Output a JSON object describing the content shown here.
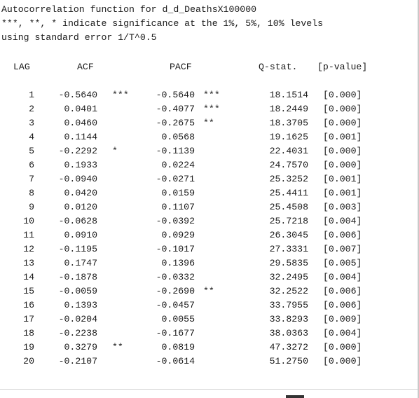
{
  "header": {
    "line1": "Autocorrelation function for d_d_DeathsX100000",
    "line2": "***, **, * indicate significance at the 1%, 5%, 10% levels",
    "line3": "using standard error 1/T^0.5"
  },
  "columns": {
    "lag": "LAG",
    "acf": "ACF",
    "pacf": "PACF",
    "q": "Q-stat.",
    "p": "[p-value]"
  },
  "rows": [
    {
      "lag": "1",
      "acf": "-0.5640",
      "acf_sig": "***",
      "pacf": "-0.5640",
      "pacf_sig": "***",
      "q": "18.1514",
      "p": "[0.000]"
    },
    {
      "lag": "2",
      "acf": "0.0401",
      "acf_sig": "",
      "pacf": "-0.4077",
      "pacf_sig": "***",
      "q": "18.2449",
      "p": "[0.000]"
    },
    {
      "lag": "3",
      "acf": "0.0460",
      "acf_sig": "",
      "pacf": "-0.2675",
      "pacf_sig": "**",
      "q": "18.3705",
      "p": "[0.000]"
    },
    {
      "lag": "4",
      "acf": "0.1144",
      "acf_sig": "",
      "pacf": "0.0568",
      "pacf_sig": "",
      "q": "19.1625",
      "p": "[0.001]"
    },
    {
      "lag": "5",
      "acf": "-0.2292",
      "acf_sig": "*",
      "pacf": "-0.1139",
      "pacf_sig": "",
      "q": "22.4031",
      "p": "[0.000]"
    },
    {
      "lag": "6",
      "acf": "0.1933",
      "acf_sig": "",
      "pacf": "0.0224",
      "pacf_sig": "",
      "q": "24.7570",
      "p": "[0.000]"
    },
    {
      "lag": "7",
      "acf": "-0.0940",
      "acf_sig": "",
      "pacf": "-0.0271",
      "pacf_sig": "",
      "q": "25.3252",
      "p": "[0.001]"
    },
    {
      "lag": "8",
      "acf": "0.0420",
      "acf_sig": "",
      "pacf": "0.0159",
      "pacf_sig": "",
      "q": "25.4411",
      "p": "[0.001]"
    },
    {
      "lag": "9",
      "acf": "0.0120",
      "acf_sig": "",
      "pacf": "0.1107",
      "pacf_sig": "",
      "q": "25.4508",
      "p": "[0.003]"
    },
    {
      "lag": "10",
      "acf": "-0.0628",
      "acf_sig": "",
      "pacf": "-0.0392",
      "pacf_sig": "",
      "q": "25.7218",
      "p": "[0.004]"
    },
    {
      "lag": "11",
      "acf": "0.0910",
      "acf_sig": "",
      "pacf": "0.0929",
      "pacf_sig": "",
      "q": "26.3045",
      "p": "[0.006]"
    },
    {
      "lag": "12",
      "acf": "-0.1195",
      "acf_sig": "",
      "pacf": "-0.1017",
      "pacf_sig": "",
      "q": "27.3331",
      "p": "[0.007]"
    },
    {
      "lag": "13",
      "acf": "0.1747",
      "acf_sig": "",
      "pacf": "0.1396",
      "pacf_sig": "",
      "q": "29.5835",
      "p": "[0.005]"
    },
    {
      "lag": "14",
      "acf": "-0.1878",
      "acf_sig": "",
      "pacf": "-0.0332",
      "pacf_sig": "",
      "q": "32.2495",
      "p": "[0.004]"
    },
    {
      "lag": "15",
      "acf": "-0.0059",
      "acf_sig": "",
      "pacf": "-0.2690",
      "pacf_sig": "**",
      "q": "32.2522",
      "p": "[0.006]"
    },
    {
      "lag": "16",
      "acf": "0.1393",
      "acf_sig": "",
      "pacf": "-0.0457",
      "pacf_sig": "",
      "q": "33.7955",
      "p": "[0.006]"
    },
    {
      "lag": "17",
      "acf": "-0.0204",
      "acf_sig": "",
      "pacf": "0.0055",
      "pacf_sig": "",
      "q": "33.8293",
      "p": "[0.009]"
    },
    {
      "lag": "18",
      "acf": "-0.2238",
      "acf_sig": "",
      "pacf": "-0.1677",
      "pacf_sig": "",
      "q": "38.0363",
      "p": "[0.004]"
    },
    {
      "lag": "19",
      "acf": "0.3279",
      "acf_sig": "**",
      "pacf": "0.0819",
      "pacf_sig": "",
      "q": "47.3272",
      "p": "[0.000]"
    },
    {
      "lag": "20",
      "acf": "-0.2107",
      "acf_sig": "",
      "pacf": "-0.0614",
      "pacf_sig": "",
      "q": "51.2750",
      "p": "[0.000]"
    }
  ]
}
